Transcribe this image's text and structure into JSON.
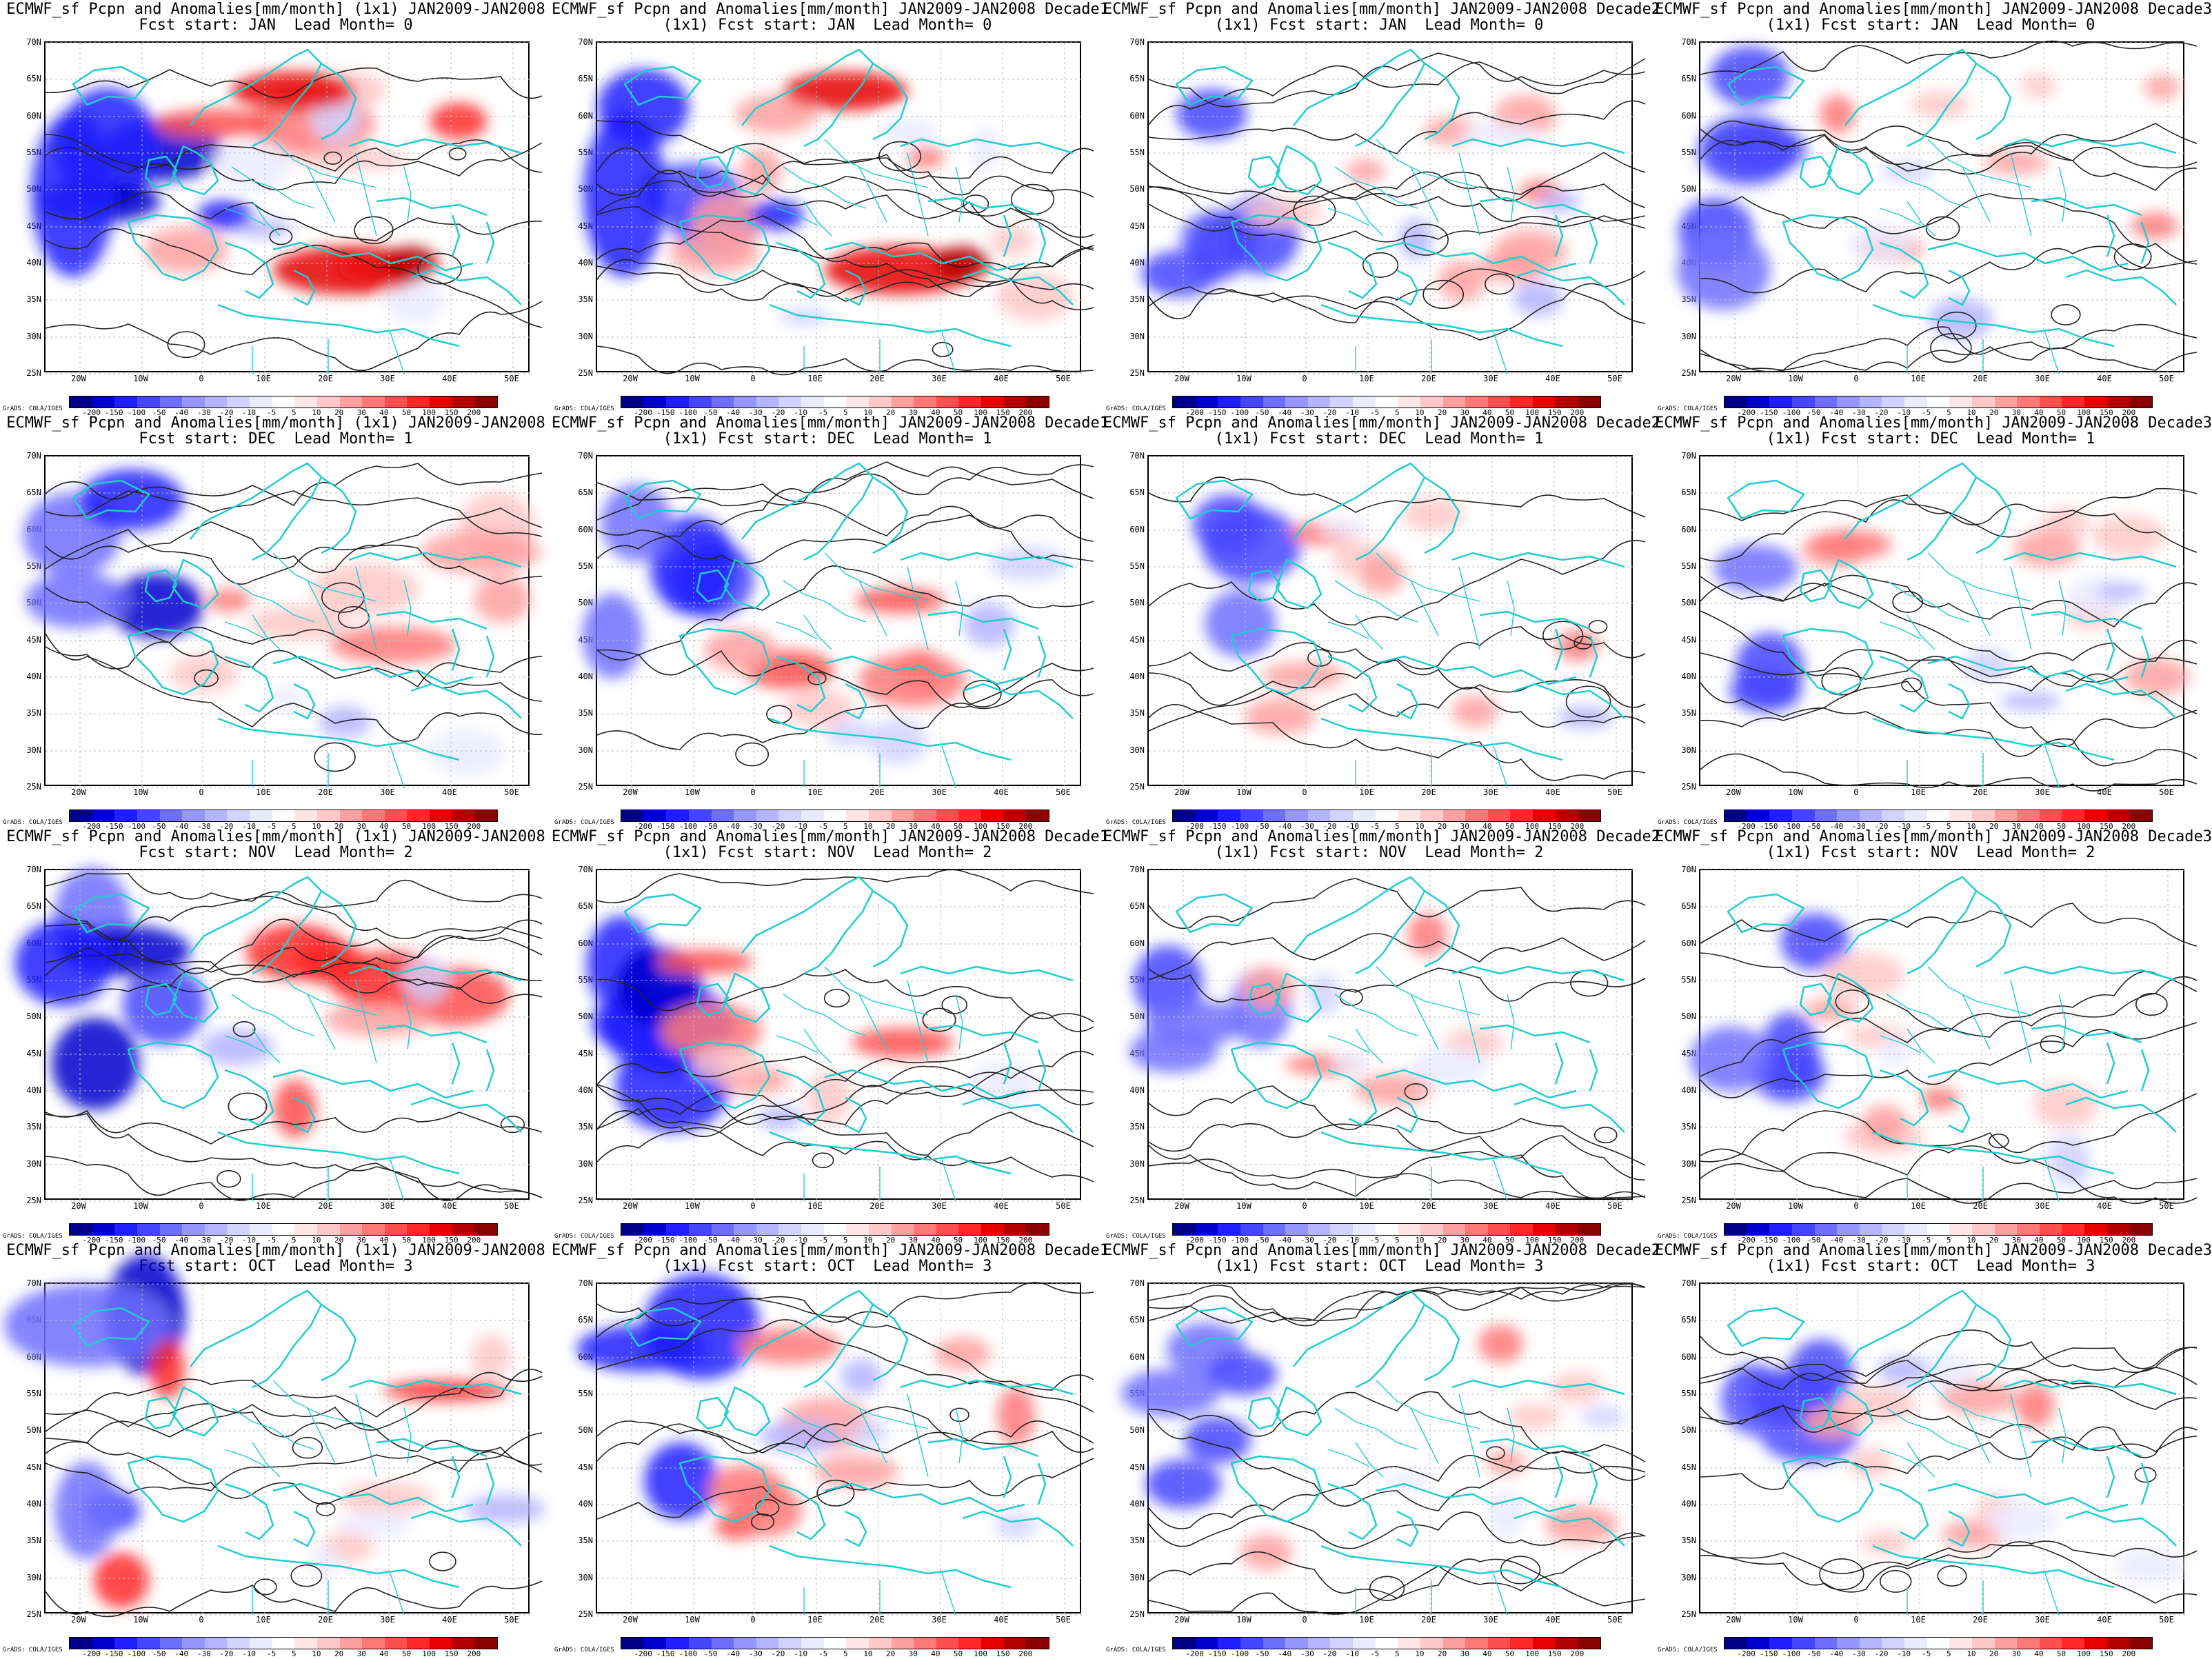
{
  "panels": [
    {
      "line1": "ECMWF_sf Pcpn and Anomalies[mm/month] (1x1) JAN2009-JAN2008",
      "line2": "Fcst start: JAN  Lead Month= 0"
    },
    {
      "line1": "ECMWF_sf Pcpn and Anomalies[mm/month] JAN2009-JAN2008 Decade1",
      "line2": "(1x1) Fcst start: JAN  Lead Month= 0"
    },
    {
      "line1": "ECMWF_sf Pcpn and Anomalies[mm/month] JAN2009-JAN2008 Decade2",
      "line2": "(1x1) Fcst start: JAN  Lead Month= 0"
    },
    {
      "line1": "ECMWF_sf Pcpn and Anomalies[mm/month] JAN2009-JAN2008 Decade3",
      "line2": "(1x1) Fcst start: JAN  Lead Month= 0"
    },
    {
      "line1": "ECMWF_sf Pcpn and Anomalies[mm/month] (1x1) JAN2009-JAN2008",
      "line2": "Fcst start: DEC  Lead Month= 1"
    },
    {
      "line1": "ECMWF_sf Pcpn and Anomalies[mm/month] JAN2009-JAN2008 Decade1",
      "line2": "(1x1) Fcst start: DEC  Lead Month= 1"
    },
    {
      "line1": "ECMWF_sf Pcpn and Anomalies[mm/month] JAN2009-JAN2008 Decade2",
      "line2": "(1x1) Fcst start: DEC  Lead Month= 1"
    },
    {
      "line1": "ECMWF_sf Pcpn and Anomalies[mm/month] JAN2009-JAN2008 Decade3",
      "line2": "(1x1) Fcst start: DEC  Lead Month= 1"
    },
    {
      "line1": "ECMWF_sf Pcpn and Anomalies[mm/month] (1x1) JAN2009-JAN2008",
      "line2": "Fcst start: NOV  Lead Month= 2"
    },
    {
      "line1": "ECMWF_sf Pcpn and Anomalies[mm/month] JAN2009-JAN2008 Decade1",
      "line2": "(1x1) Fcst start: NOV  Lead Month= 2"
    },
    {
      "line1": "ECMWF_sf Pcpn and Anomalies[mm/month] JAN2009-JAN2008 Decade2",
      "line2": "(1x1) Fcst start: NOV  Lead Month= 2"
    },
    {
      "line1": "ECMWF_sf Pcpn and Anomalies[mm/month] JAN2009-JAN2008 Decade3",
      "line2": "(1x1) Fcst start: NOV  Lead Month= 2"
    },
    {
      "line1": "ECMWF_sf Pcpn and Anomalies[mm/month] (1x1) JAN2009-JAN2008",
      "line2": "Fcst start: OCT  Lead Month= 3"
    },
    {
      "line1": "ECMWF_sf Pcpn and Anomalies[mm/month] JAN2009-JAN2008 Decade1",
      "line2": "(1x1) Fcst start: OCT  Lead Month= 3"
    },
    {
      "line1": "ECMWF_sf Pcpn and Anomalies[mm/month] JAN2009-JAN2008 Decade2",
      "line2": "(1x1) Fcst start: OCT  Lead Month= 3"
    },
    {
      "line1": "ECMWF_sf Pcpn and Anomalies[mm/month] JAN2009-JAN2008 Decade3",
      "line2": "(1x1) Fcst start: OCT  Lead Month= 3"
    }
  ],
  "lat_labels": [
    "70N",
    "65N",
    "60N",
    "55N",
    "50N",
    "45N",
    "40N",
    "35N",
    "30N",
    "25N"
  ],
  "lon_labels": [
    "20W",
    "10W",
    "0",
    "10E",
    "20E",
    "30E",
    "40E",
    "50E"
  ],
  "colorbar": {
    "ticks": [
      "-200",
      "-150",
      "-100",
      "-50",
      "-40",
      "-30",
      "-20",
      "-10",
      "-5",
      "5",
      "10",
      "20",
      "30",
      "40",
      "50",
      "100",
      "150",
      "200"
    ],
    "colors": [
      "#00008b",
      "#0000cd",
      "#1e1eff",
      "#4646ff",
      "#6e6eff",
      "#9696ff",
      "#b4b4ff",
      "#d2d2ff",
      "#ebebff",
      "#ffffff",
      "#ffe6e6",
      "#ffc8c8",
      "#ffa0a0",
      "#ff7878",
      "#ff5050",
      "#ff2828",
      "#e60000",
      "#b40000",
      "#8b0000"
    ]
  },
  "credit": "GrADS: COLA/IGES",
  "colors": {
    "coast": "#22cccc",
    "contour": "#222222",
    "grid": "#bbbbbb"
  }
}
